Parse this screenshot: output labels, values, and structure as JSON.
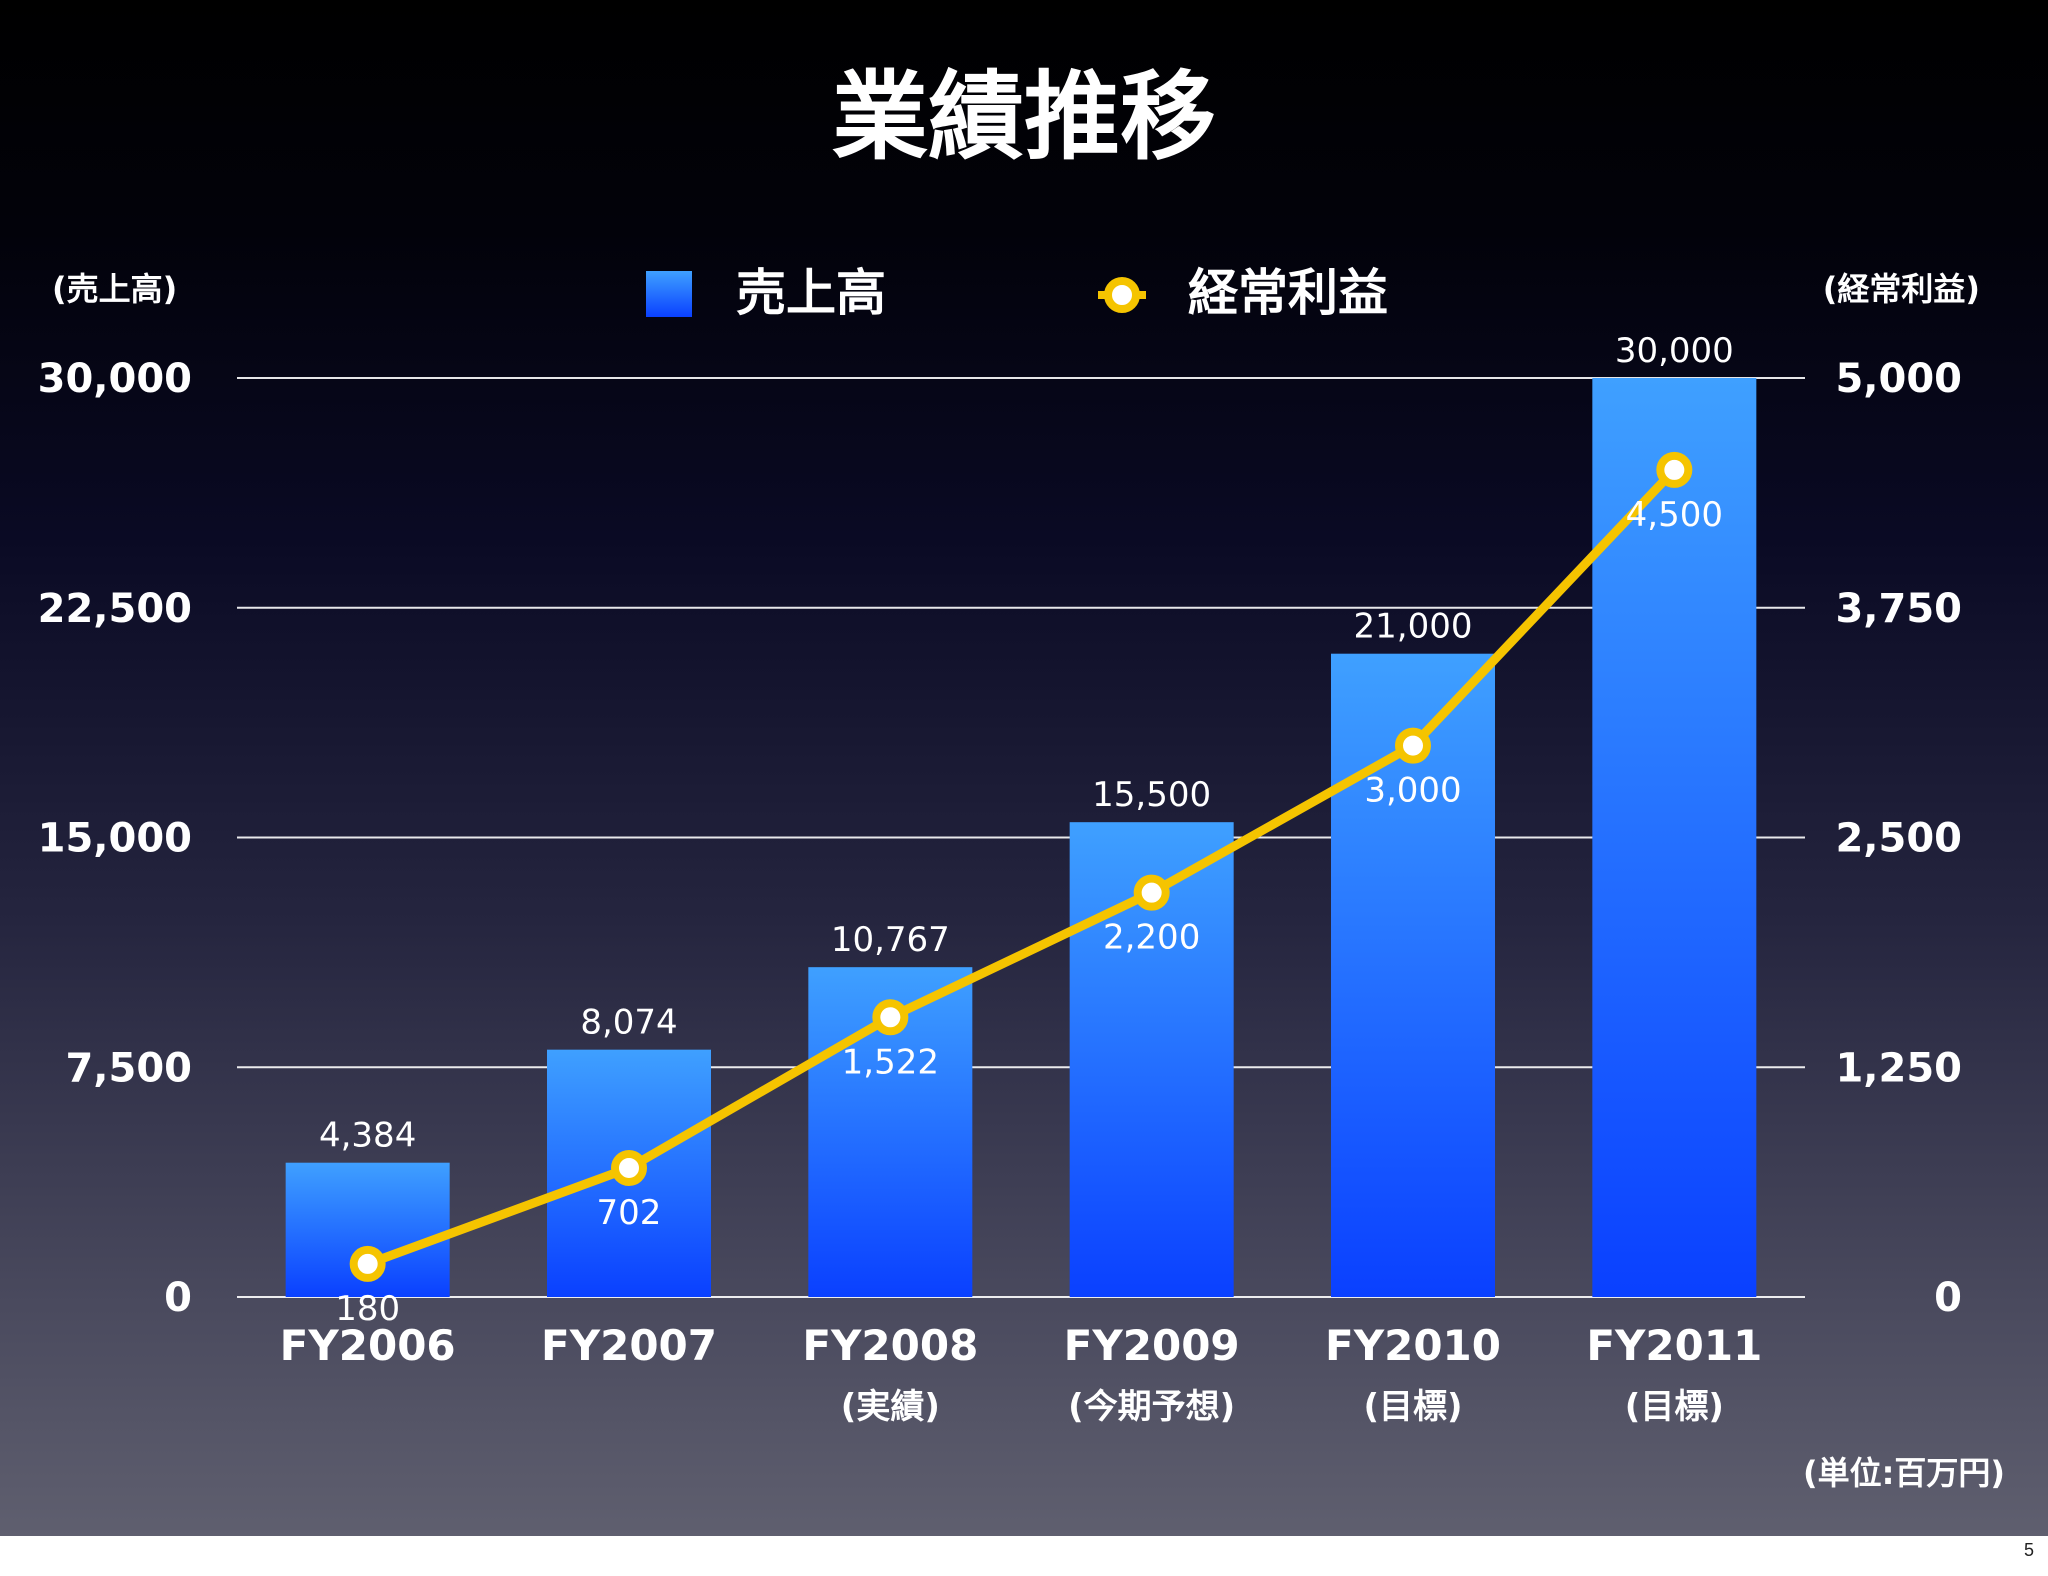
{
  "page": {
    "number": "5"
  },
  "chart_data": {
    "type": "bar+line",
    "title": "業績推移",
    "left_axis_label": "(売上高)",
    "right_axis_label": "(経常利益)",
    "unit_note": "(単位:百万円)",
    "categories": [
      {
        "label": "FY2006",
        "sublabel": ""
      },
      {
        "label": "FY2007",
        "sublabel": ""
      },
      {
        "label": "FY2008",
        "sublabel": "(実績)"
      },
      {
        "label": "FY2009",
        "sublabel": "(今期予想)"
      },
      {
        "label": "FY2010",
        "sublabel": "(目標)"
      },
      {
        "label": "FY2011",
        "sublabel": "(目標)"
      }
    ],
    "series": [
      {
        "name": "売上高",
        "type": "bar",
        "axis": "left",
        "values": [
          4384,
          8074,
          10767,
          15500,
          21000,
          30000
        ],
        "labels": [
          "4,384",
          "8,074",
          "10,767",
          "15,500",
          "21,000",
          "30,000"
        ]
      },
      {
        "name": "経常利益",
        "type": "line",
        "axis": "right",
        "values": [
          180,
          702,
          1522,
          2200,
          3000,
          4500
        ],
        "labels": [
          "180",
          "702",
          "1,522",
          "2,200",
          "3,000",
          "4,500"
        ]
      }
    ],
    "left_axis": {
      "ylim": [
        0,
        30000
      ],
      "ticks": [
        "0",
        "7,500",
        "15,000",
        "22,500",
        "30,000"
      ]
    },
    "right_axis": {
      "ylim": [
        0,
        5000
      ],
      "ticks": [
        "0",
        "1,250",
        "2,500",
        "3,750",
        "5,000"
      ]
    },
    "grid": true,
    "legend_position": "top-center",
    "colors": {
      "bar_top": "#3fa0ff",
      "bar_bottom": "#0a40ff",
      "line": "#f5c400",
      "grid": "#ffffff",
      "text": "#ffffff"
    }
  }
}
